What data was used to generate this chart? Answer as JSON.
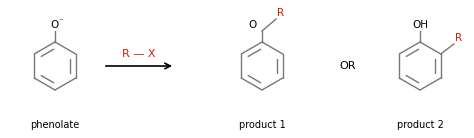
{
  "bg_color": "#ffffff",
  "line_color": "#777777",
  "red_color": "#cc2200",
  "black_color": "#000000",
  "arrow_color": "#555555",
  "label_phenolate": "phenolate",
  "label_product1": "product 1",
  "label_product2": "product 2",
  "label_or": "OR",
  "label_rx": "R — X",
  "label_R_product1": "R",
  "label_R_product2": "R",
  "label_O_phenolate": "O",
  "label_O_product1": "O",
  "label_OH_product2": "OH",
  "minus_sign": "⁻",
  "font_size_label": 7.0,
  "font_size_struct": 7.5,
  "font_size_or": 8.0,
  "font_size_rx": 8.0
}
